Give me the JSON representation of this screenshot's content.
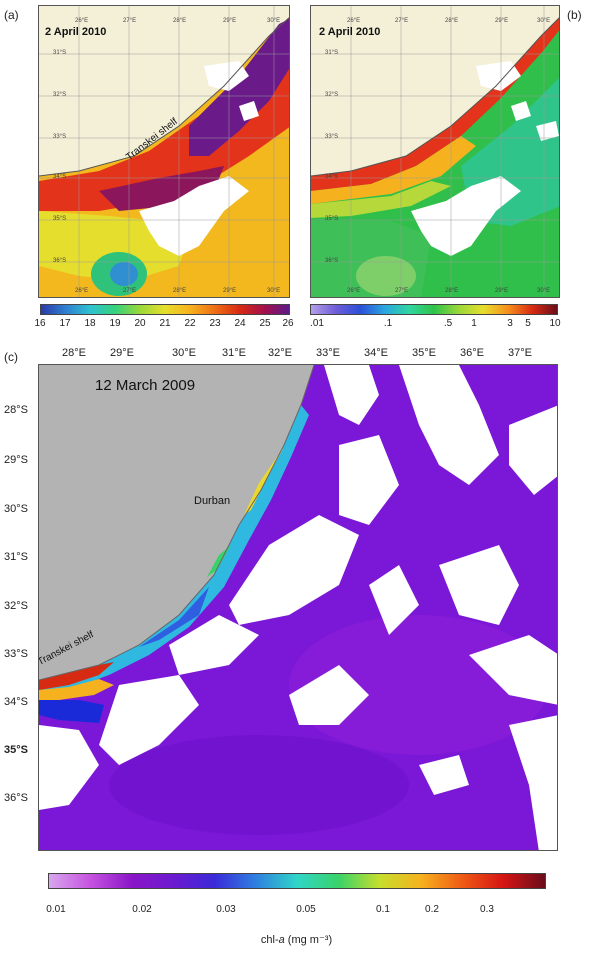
{
  "panel_a": {
    "letter": "(a)",
    "date": "2 April 2010",
    "shelf_label": "Transkei shelf",
    "lon_ticks": [
      "26°E",
      "27°E",
      "28°E",
      "29°E",
      "30°E"
    ],
    "lat_ticks": [
      "31°S",
      "32°S",
      "33°S",
      "34°S",
      "35°S",
      "36°S"
    ],
    "colorbar": {
      "ticks": [
        "16",
        "17",
        "18",
        "19",
        "20",
        "21",
        "22",
        "23",
        "24",
        "25",
        "26"
      ],
      "colors": [
        "#2b3aa8",
        "#2f7fd0",
        "#2fc2d0",
        "#36d27a",
        "#9ad83a",
        "#e6de2c",
        "#f6b21e",
        "#ef6f14",
        "#d72a12",
        "#a5104a",
        "#5c1a8a"
      ]
    }
  },
  "panel_b": {
    "letter": "(b)",
    "date": "2 April 2010",
    "lon_ticks": [
      "26°E",
      "27°E",
      "28°E",
      "29°E",
      "30°E"
    ],
    "lat_ticks": [
      "31°S",
      "32°S",
      "33°S",
      "34°S",
      "35°S",
      "36°S"
    ],
    "colorbar": {
      "ticks": [
        ".01",
        ".1",
        ".5",
        "1",
        "3",
        "5",
        "10"
      ],
      "colors": [
        "#b59ee8",
        "#6f5ed8",
        "#2b4fd8",
        "#2aa6e0",
        "#2fd6a0",
        "#2fc34a",
        "#9ad83a",
        "#e6de2c",
        "#f6901e",
        "#d72a12",
        "#6a0d1a"
      ]
    }
  },
  "panel_c": {
    "letter": "(c)",
    "date": "12 March 2009",
    "city": "Durban",
    "shelf_label": "Transkei shelf",
    "lon_ticks": [
      "28°E",
      "29°E",
      "30°E",
      "31°E",
      "32°E",
      "33°E",
      "34°E",
      "35°E",
      "36°E",
      "37°E"
    ],
    "lat_ticks": [
      "28°S",
      "29°S",
      "30°S",
      "31°S",
      "32°S",
      "33°S",
      "34°S",
      "35°S",
      "36°S"
    ],
    "colorbar": {
      "ticks": [
        "0.01",
        "0.02",
        "0.03",
        "0.05",
        "0.1",
        "0.2",
        "0.3"
      ],
      "title_prefix": "chl-",
      "title_var": "a",
      "title_suffix": " (mg m⁻³)",
      "colors": [
        "#d8a6ee",
        "#c653e0",
        "#8a16c8",
        "#6c1ad0",
        "#3a2ad8",
        "#2f7fe0",
        "#2fd6c8",
        "#39d26a",
        "#c6de2c",
        "#f6b21e",
        "#ef5a14",
        "#d41414",
        "#6a0d1a"
      ]
    },
    "colors": {
      "land": "#b3b3b3",
      "ocean": "#7b17d6"
    }
  }
}
